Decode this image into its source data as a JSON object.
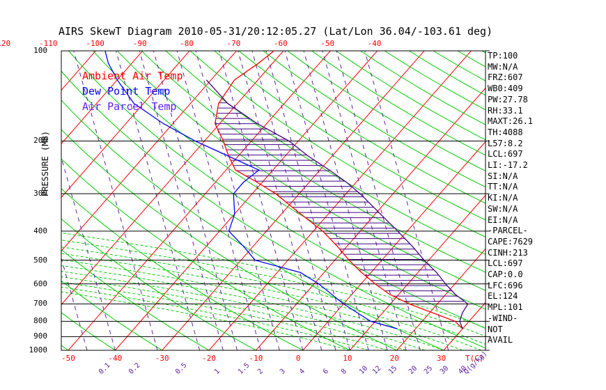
{
  "title": "AIRS SkewT Diagram 2010-05-31/20:12:05.27 (Lat/Lon 36.04/-103.61 deg)",
  "legend": {
    "ambient": "Ambient Air Temp",
    "dewpoint": "Dew Point Temp",
    "parcel": "Air Parcel Temp"
  },
  "ylabel": "PRESSURE (MB)",
  "pressure_ticks": [
    "100",
    "200",
    "300",
    "400",
    "500",
    "600",
    "700",
    "800",
    "900",
    "1000"
  ],
  "top_temps": [
    "-120",
    "-110",
    "-100",
    "-90",
    "-80",
    "-70",
    "-60",
    "-50",
    "-40"
  ],
  "bottom_temps": [
    "-50",
    "-40",
    "-30",
    "-20",
    "-10",
    "0",
    "10",
    "20",
    "30"
  ],
  "bottom_unit": "T(C)",
  "mixing_labels": [
    "0.1",
    "0.2",
    "0.5",
    "1",
    "1.5",
    "2",
    "3",
    "4",
    "6",
    "8",
    "10",
    "12",
    "15",
    "20",
    "25",
    "30",
    "40",
    "Q(g/kg)"
  ],
  "stats": [
    "TP:100",
    "MW:N/A",
    "FRZ:607",
    "WB0:409",
    "PW:27.78",
    "RH:33.1",
    "MAXT:26.1",
    "TH:4088",
    "L57:8.2",
    "LCL:697",
    "LI:-17.2",
    "SI:N/A",
    "TT:N/A",
    "KI:N/A",
    "SW:N/A",
    "EI:N/A",
    "-PARCEL-",
    "CAPE:7629",
    "CINH:213",
    "LCL:697",
    "CAP:0.0",
    "LFC:696",
    "EL:124",
    "MPL:101",
    "-WIND-",
    "NOT",
    "AVAIL"
  ],
  "colors": {
    "temp": "#ff0000",
    "dew": "#0000ff",
    "parcel": "#400080",
    "isotherm": "#ff0000",
    "dryadiabat": "#00cc00",
    "mixing": "#6020a0"
  },
  "chart_data": {
    "type": "line",
    "title": "AIRS SkewT Diagram 2010-05-31/20:12:05.27 (Lat/Lon 36.04/-103.61 deg)",
    "ylabel": "PRESSURE (MB)",
    "xlabel": "T(C)",
    "y_scale": "log",
    "ylim": [
      1000,
      100
    ],
    "series": [
      {
        "name": "Ambient Air Temp",
        "points": [
          [
            847,
            30
          ],
          [
            800,
            27
          ],
          [
            700,
            14
          ],
          [
            650,
            8
          ],
          [
            600,
            3
          ],
          [
            550,
            -2
          ],
          [
            500,
            -7
          ],
          [
            450,
            -12
          ],
          [
            400,
            -18
          ],
          [
            350,
            -26
          ],
          [
            300,
            -35
          ],
          [
            275,
            -41
          ],
          [
            250,
            -48
          ],
          [
            225,
            -52
          ],
          [
            200,
            -56
          ],
          [
            175,
            -61
          ],
          [
            150,
            -64
          ],
          [
            125,
            -65
          ],
          [
            110,
            -63
          ],
          [
            100,
            -62
          ]
        ]
      },
      {
        "name": "Dew Point Temp",
        "points": [
          [
            847,
            16
          ],
          [
            800,
            9
          ],
          [
            700,
            0
          ],
          [
            600,
            -9
          ],
          [
            550,
            -15
          ],
          [
            500,
            -27
          ],
          [
            450,
            -32
          ],
          [
            400,
            -38
          ],
          [
            350,
            -40
          ],
          [
            300,
            -44
          ],
          [
            275,
            -44
          ],
          [
            250,
            -43
          ],
          [
            225,
            -52
          ],
          [
            200,
            -62
          ],
          [
            175,
            -72
          ],
          [
            150,
            -82
          ],
          [
            125,
            -90
          ],
          [
            110,
            -95
          ],
          [
            100,
            -98
          ]
        ]
      },
      {
        "name": "Air Parcel Temp",
        "points": [
          [
            847,
            30
          ],
          [
            800,
            28
          ],
          [
            750,
            27
          ],
          [
            700,
            26.5
          ],
          [
            650,
            22
          ],
          [
            600,
            18
          ],
          [
            550,
            14
          ],
          [
            500,
            9
          ],
          [
            450,
            4
          ],
          [
            400,
            -2
          ],
          [
            350,
            -9
          ],
          [
            300,
            -17
          ],
          [
            275,
            -22
          ],
          [
            250,
            -28
          ],
          [
            225,
            -35
          ],
          [
            200,
            -42
          ],
          [
            175,
            -52
          ],
          [
            150,
            -62
          ],
          [
            125,
            -71
          ]
        ]
      }
    ]
  }
}
